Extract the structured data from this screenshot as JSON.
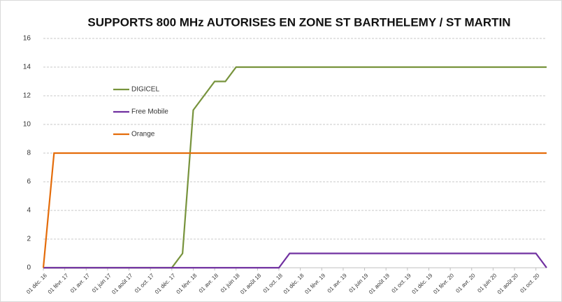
{
  "chart_data": {
    "type": "line",
    "title": "SUPPORTS 800 MHz AUTORISES EN ZONE ST BARTHELEMY / ST MARTIN",
    "categories": [
      "01 déc. 16",
      null,
      "01 févr. 17",
      null,
      "01 avr. 17",
      null,
      "01 juin 17",
      null,
      "01 août 17",
      null,
      "01 oct. 17",
      null,
      "01 déc. 17",
      null,
      "01 févr. 18",
      null,
      "01 avr. 18",
      null,
      "01 juin 18",
      null,
      "01 août 18",
      null,
      "01 oct. 18",
      null,
      "01 déc. 18",
      null,
      "01 févr. 19",
      null,
      "01 avr. 19",
      null,
      "01 juin 19",
      null,
      "01 août 19",
      null,
      "01 oct. 19",
      null,
      "01 déc. 19",
      null,
      "01 févr. 20",
      null,
      "01 avr. 20",
      null,
      "01 juin 20",
      null,
      "01 août 20",
      null,
      "01 oct. 20",
      null
    ],
    "series": [
      {
        "name": "DIGICEL",
        "color": "#77933c",
        "values": [
          0,
          0,
          0,
          0,
          0,
          0,
          0,
          0,
          0,
          0,
          0,
          0,
          0,
          1,
          11,
          12,
          13,
          13,
          14,
          14,
          14,
          14,
          14,
          14,
          14,
          14,
          14,
          14,
          14,
          14,
          14,
          14,
          14,
          14,
          14,
          14,
          14,
          14,
          14,
          14,
          14,
          14,
          14,
          14,
          14,
          14,
          14,
          14
        ]
      },
      {
        "name": "Free Mobile",
        "color": "#7030a0",
        "values": [
          0,
          0,
          0,
          0,
          0,
          0,
          0,
          0,
          0,
          0,
          0,
          0,
          0,
          0,
          0,
          0,
          0,
          0,
          0,
          0,
          0,
          0,
          0,
          1,
          1,
          1,
          1,
          1,
          1,
          1,
          1,
          1,
          1,
          1,
          1,
          1,
          1,
          1,
          1,
          1,
          1,
          1,
          1,
          1,
          1,
          1,
          1,
          0
        ]
      },
      {
        "name": "Orange",
        "color": "#e46c0a",
        "values": [
          0,
          8,
          8,
          8,
          8,
          8,
          8,
          8,
          8,
          8,
          8,
          8,
          8,
          8,
          8,
          8,
          8,
          8,
          8,
          8,
          8,
          8,
          8,
          8,
          8,
          8,
          8,
          8,
          8,
          8,
          8,
          8,
          8,
          8,
          8,
          8,
          8,
          8,
          8,
          8,
          8,
          8,
          8,
          8,
          8,
          8,
          8,
          8
        ]
      }
    ],
    "ylim": [
      0,
      16
    ],
    "yticks": [
      0,
      2,
      4,
      6,
      8,
      10,
      12,
      14,
      16
    ],
    "grid": true,
    "legend": "left"
  }
}
